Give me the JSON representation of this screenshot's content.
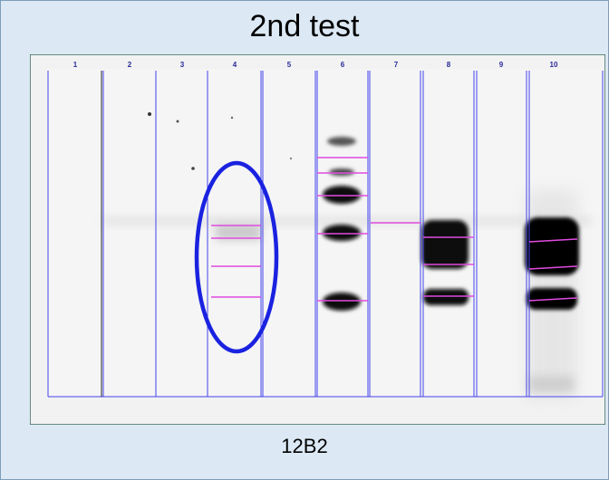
{
  "title": "2nd test",
  "caption": "12B2",
  "lanes": [
    "1",
    "2",
    "3",
    "4",
    "5",
    "6",
    "7",
    "8",
    "9",
    "10"
  ],
  "colors": {
    "background": "#dce9f5",
    "lane_lines": "#4444ee",
    "marker_lines": "#e04be0",
    "highlight_ellipse": "#1a22e0",
    "bands": "#0a0a0a"
  }
}
